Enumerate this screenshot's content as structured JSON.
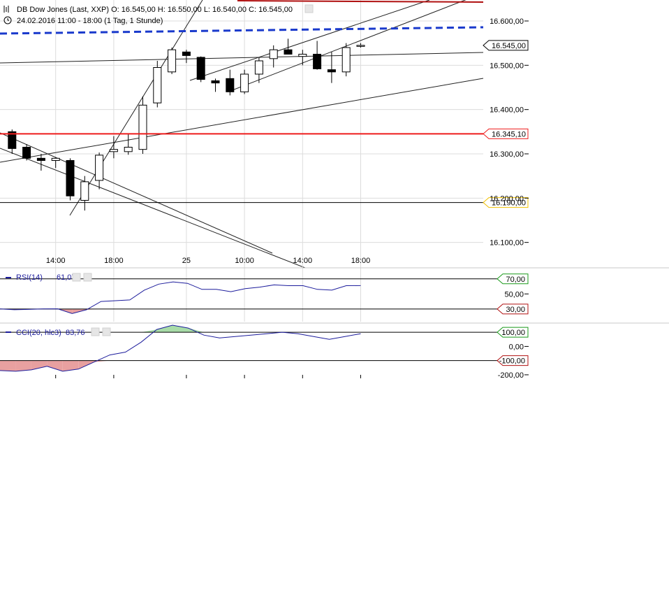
{
  "header": {
    "instrument_line": "DB Dow Jones (Last, XXP)  O: 16.545,00  H: 16.550,00  L: 16.540,00  C: 16.545,00",
    "period_line": "24.02.2016 11:00 - 18:00 (1 Tag, 1 Stunde)"
  },
  "chart_data": [
    {
      "type": "candlestick",
      "ylim": [
        16060,
        16640
      ],
      "yticks": [
        {
          "value": 16600,
          "label": "16.600,00"
        },
        {
          "value": 16500,
          "label": "16.500,00"
        },
        {
          "value": 16400,
          "label": "16.400,00"
        },
        {
          "value": 16300,
          "label": "16.300,00"
        },
        {
          "value": 16200,
          "label": "16.200,00"
        },
        {
          "value": 16100,
          "label": "16.100,00"
        }
      ],
      "xticks": [
        {
          "bar": 3,
          "label": "14:00"
        },
        {
          "bar": 7,
          "label": "18:00"
        },
        {
          "bar": 12,
          "label": "25"
        },
        {
          "bar": 16,
          "label": "10:00"
        },
        {
          "bar": 20,
          "label": "14:00"
        },
        {
          "bar": 24,
          "label": "18:00"
        }
      ],
      "candles": [
        {
          "o": 16350,
          "h": 16355,
          "l": 16300,
          "c": 16312
        },
        {
          "o": 16315,
          "h": 16322,
          "l": 16285,
          "c": 16290
        },
        {
          "o": 16290,
          "h": 16300,
          "l": 16262,
          "c": 16285
        },
        {
          "o": 16285,
          "h": 16292,
          "l": 16268,
          "c": 16290
        },
        {
          "o": 16285,
          "h": 16290,
          "l": 16195,
          "c": 16205
        },
        {
          "o": 16195,
          "h": 16250,
          "l": 16172,
          "c": 16237
        },
        {
          "o": 16240,
          "h": 16303,
          "l": 16220,
          "c": 16297
        },
        {
          "o": 16305,
          "h": 16340,
          "l": 16290,
          "c": 16310
        },
        {
          "o": 16305,
          "h": 16345,
          "l": 16298,
          "c": 16315
        },
        {
          "o": 16310,
          "h": 16430,
          "l": 16300,
          "c": 16410
        },
        {
          "o": 16415,
          "h": 16510,
          "l": 16405,
          "c": 16495
        },
        {
          "o": 16485,
          "h": 16540,
          "l": 16480,
          "c": 16535
        },
        {
          "o": 16530,
          "h": 16535,
          "l": 16505,
          "c": 16522
        },
        {
          "o": 16518,
          "h": 16520,
          "l": 16462,
          "c": 16468
        },
        {
          "o": 16465,
          "h": 16470,
          "l": 16440,
          "c": 16460
        },
        {
          "o": 16470,
          "h": 16490,
          "l": 16432,
          "c": 16440
        },
        {
          "o": 16440,
          "h": 16490,
          "l": 16435,
          "c": 16480
        },
        {
          "o": 16480,
          "h": 16518,
          "l": 16460,
          "c": 16510
        },
        {
          "o": 16515,
          "h": 16545,
          "l": 16495,
          "c": 16535
        },
        {
          "o": 16535,
          "h": 16560,
          "l": 16525,
          "c": 16525
        },
        {
          "o": 16520,
          "h": 16535,
          "l": 16500,
          "c": 16525
        },
        {
          "o": 16525,
          "h": 16555,
          "l": 16490,
          "c": 16492
        },
        {
          "o": 16490,
          "h": 16530,
          "l": 16460,
          "c": 16485
        },
        {
          "o": 16485,
          "h": 16550,
          "l": 16475,
          "c": 16540
        },
        {
          "o": 16545,
          "h": 16550,
          "l": 16540,
          "c": 16545
        }
      ],
      "levels": [
        {
          "value": 16345.1,
          "label": "16.345,10",
          "color": "#ee1c1c",
          "style": "solid"
        },
        {
          "value": 16190,
          "label": "16.190,00",
          "color": "#000000",
          "style": "solid",
          "badge_border": "#f0c000"
        },
        {
          "value": 16545,
          "label": "16.545,00",
          "color": "#000000",
          "style": "badge-only"
        }
      ],
      "colors": {
        "up": "#ffffff",
        "down": "#000000",
        "grid": "#dcdcdc",
        "blue_dashed": "#1a3acc",
        "red_top": "#b01010"
      }
    },
    {
      "type": "line",
      "indicator": "RSI(14)",
      "value_label": "61,07",
      "ylim": [
        15,
        80
      ],
      "guides": [
        {
          "value": 70,
          "label": "70,00",
          "border": "#1a9a1a"
        },
        {
          "value": 30,
          "label": "30,00",
          "border": "#b01010"
        }
      ],
      "yticks": [
        {
          "value": 50,
          "label": "50,00"
        }
      ],
      "series": [
        {
          "values": [
            30,
            29,
            29.5,
            30,
            30.2,
            24,
            29,
            40,
            41,
            42,
            55,
            63,
            66,
            64,
            56,
            56,
            53,
            57,
            59,
            62,
            61,
            61,
            56,
            55,
            61,
            61.07
          ]
        }
      ],
      "color": "#1c1c9c"
    },
    {
      "type": "line",
      "indicator": "CCI(20, hlc3)",
      "value_label": "83,76",
      "ylim": [
        -220,
        150
      ],
      "guides": [
        {
          "value": 100,
          "label": "100,00",
          "border": "#1a9a1a"
        },
        {
          "value": -100,
          "label": "-100,00",
          "border": "#b01010"
        }
      ],
      "yticks": [
        {
          "value": 0,
          "label": "0,00"
        },
        {
          "value": -200,
          "label": "-200,00"
        }
      ],
      "series": [
        {
          "values": [
            -170,
            -175,
            -165,
            -140,
            -175,
            -160,
            -110,
            -60,
            -40,
            30,
            120,
            150,
            130,
            80,
            60,
            70,
            80,
            90,
            100,
            90,
            70,
            50,
            70,
            90
          ]
        }
      ],
      "color": "#1c1c9c"
    }
  ]
}
